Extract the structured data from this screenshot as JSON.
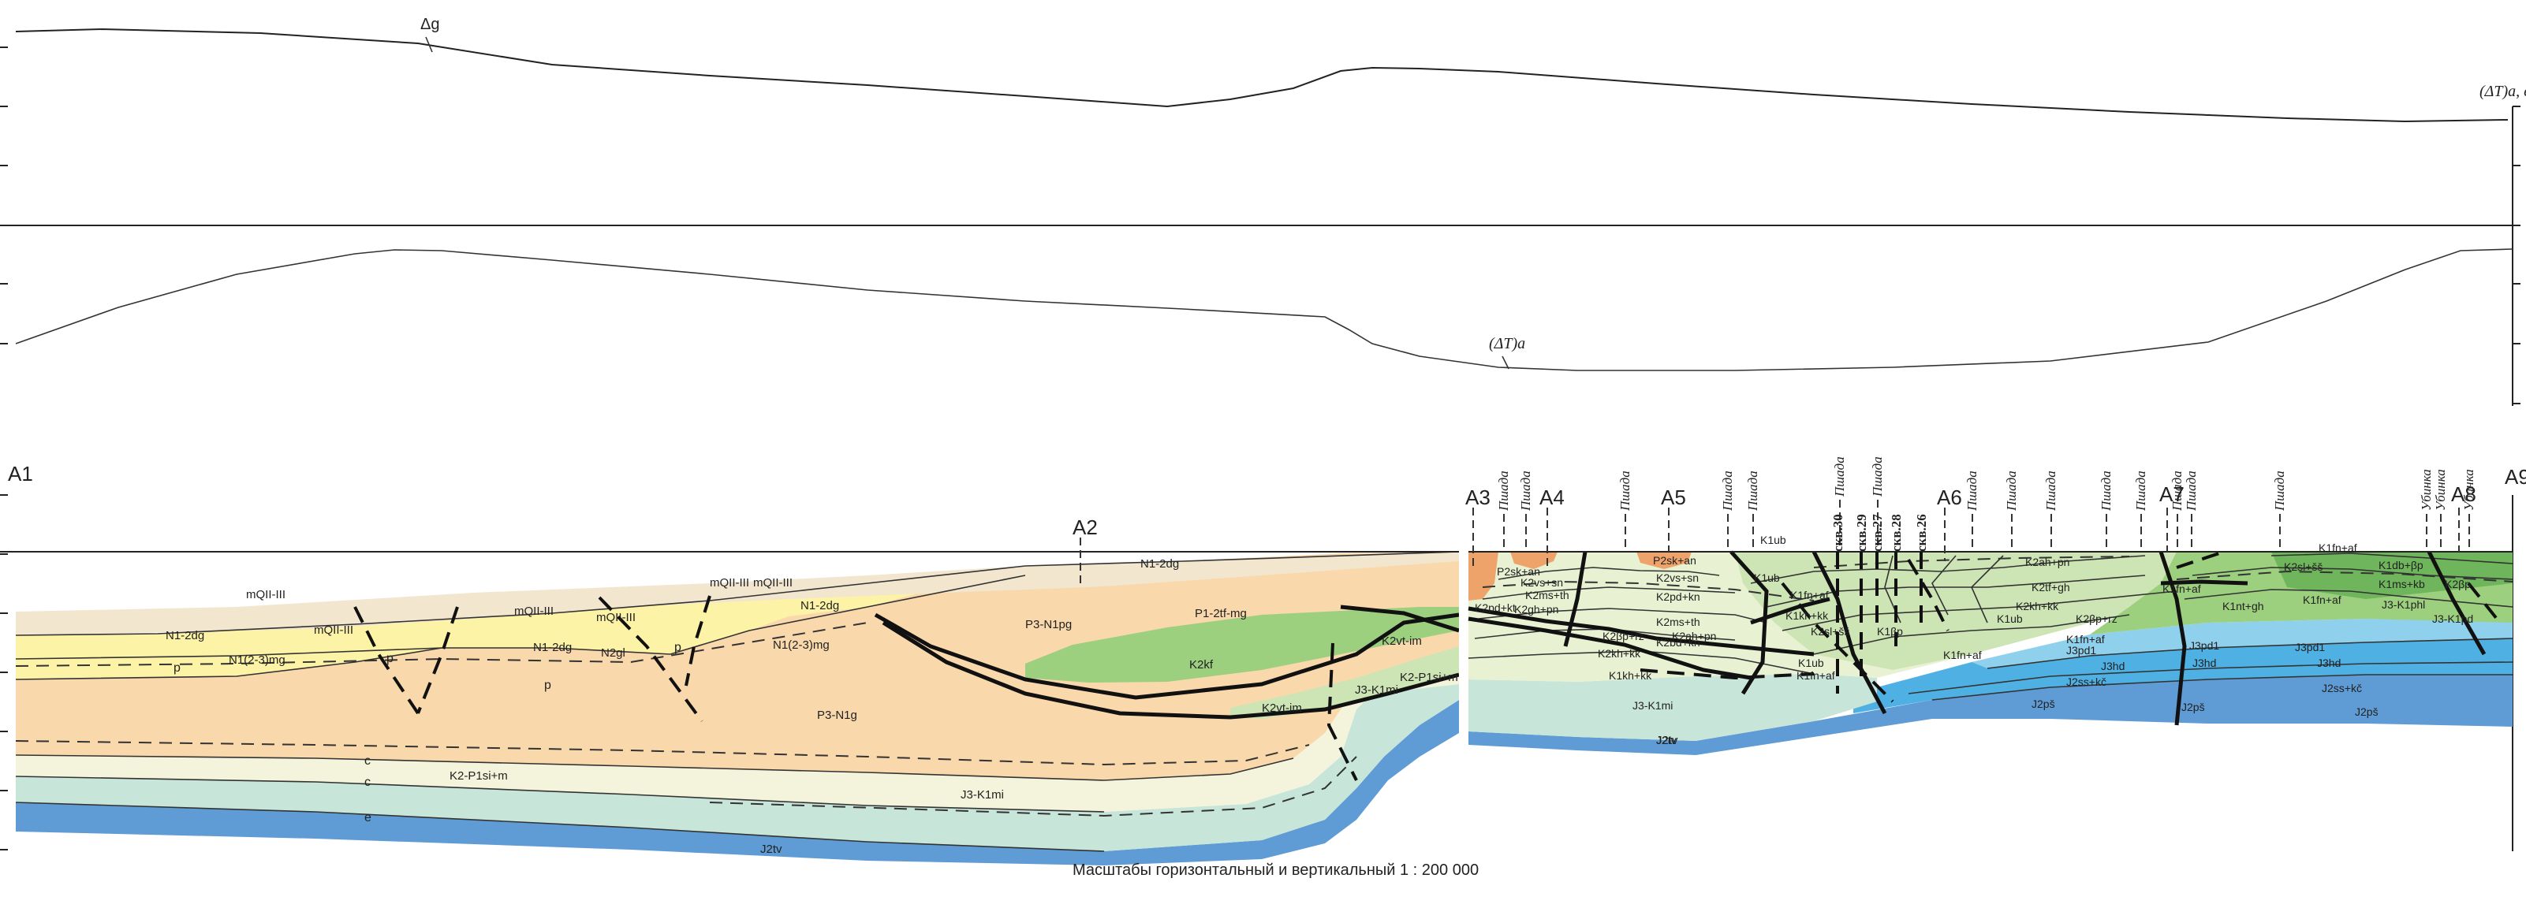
{
  "gravity_panel": {
    "curve_label": "Δg",
    "right_label": "(ΔT)a, ед."
  },
  "magnetic_panel": {
    "curve_label": "(ΔT)a"
  },
  "section": {
    "points": [
      "A1",
      "A2",
      "A3",
      "A4",
      "A5",
      "A6",
      "A7",
      "A8",
      "A9"
    ],
    "drill_labels": [
      "Пшада",
      "Пшада",
      "Пшада",
      "Пшада",
      "Пшада",
      "Пшада",
      "Пшада",
      "Пшада",
      "Пшада",
      "Пшада",
      "Пшада",
      "Пшада",
      "Пшада",
      "Пшада",
      "Пшада",
      "Пшада",
      "Убинка",
      "Убинка",
      "Убинка"
    ],
    "wells": [
      "скв.30",
      "скв.29",
      "скв.27",
      "скв.28",
      "скв.26"
    ],
    "left_units": [
      "mQII-III",
      "mQII-III",
      "mQII-III",
      "mQII-III",
      "mQII-III",
      "mQII-III",
      "N1-2dg",
      "N1-2dg",
      "N1-2dg",
      "N1-2dg",
      "N1(2-3)mg",
      "N1(2-3)mg",
      "N2gl",
      "P3-N1pg",
      "P1-2tf-mg",
      "K2kf",
      "K2vt-im",
      "K2vt-im",
      "K2-P1si+m",
      "K2-P1si+m",
      "P3-N1g",
      "J3-K1mi",
      "J3-K1mi",
      "J2tv",
      "J2tv"
    ],
    "right_units": [
      "P2sk+an",
      "P2sk+an",
      "K2vs+sn",
      "K2vs+sn",
      "K2ms+th",
      "K2pd+kn",
      "K2ms+th",
      "K2gh+pn",
      "K2bd+kn",
      "K2pd+kt",
      "K2kh+kk",
      "K2βp+rz",
      "K2ah+pn",
      "K1ub",
      "K1ub",
      "K1fn+af",
      "K1kh+kk",
      "K2sl+šš",
      "K1kh+kk",
      "K1βp",
      "K1fn+af",
      "K1fn+af",
      "K1ub",
      "K2ah+pn",
      "K2tf+gh",
      "K2kh+kk",
      "K2βp+rz",
      "K1fn+af",
      "K1fn+af",
      "K1nt+gh",
      "K1fn+af",
      "K1ub",
      "K2sl+šš",
      "K1db+βp",
      "K1ms+kb",
      "K2βp",
      "K1fn+af",
      "J3-K1phl",
      "J3-K1pd",
      "J3pd1",
      "J3pd1",
      "J3pd1",
      "J3hd",
      "J3hd",
      "J3hd",
      "J2ss+kč",
      "J2ss+kč",
      "J2pš",
      "J2pš",
      "J2pš",
      "J3-K1mi",
      "J2tv"
    ]
  },
  "caption": "Масштабы горизонтальный и вертикальный  1 : 200 000",
  "colors": {
    "orange": "#f9d8ac",
    "orange_dark": "#eea36a",
    "yellow": "#fdf3a6",
    "beige": "#f2e6cf",
    "green": "#9ccf7e",
    "green_light": "#cde5b5",
    "green_pale": "#e8f2d3",
    "green_dark": "#6fb55c",
    "mint": "#c7e5d8",
    "blue_light": "#8fd0ec",
    "blue": "#5f9bd5",
    "blue_mid": "#4fb1e3",
    "cream": "#f4f4dc"
  }
}
